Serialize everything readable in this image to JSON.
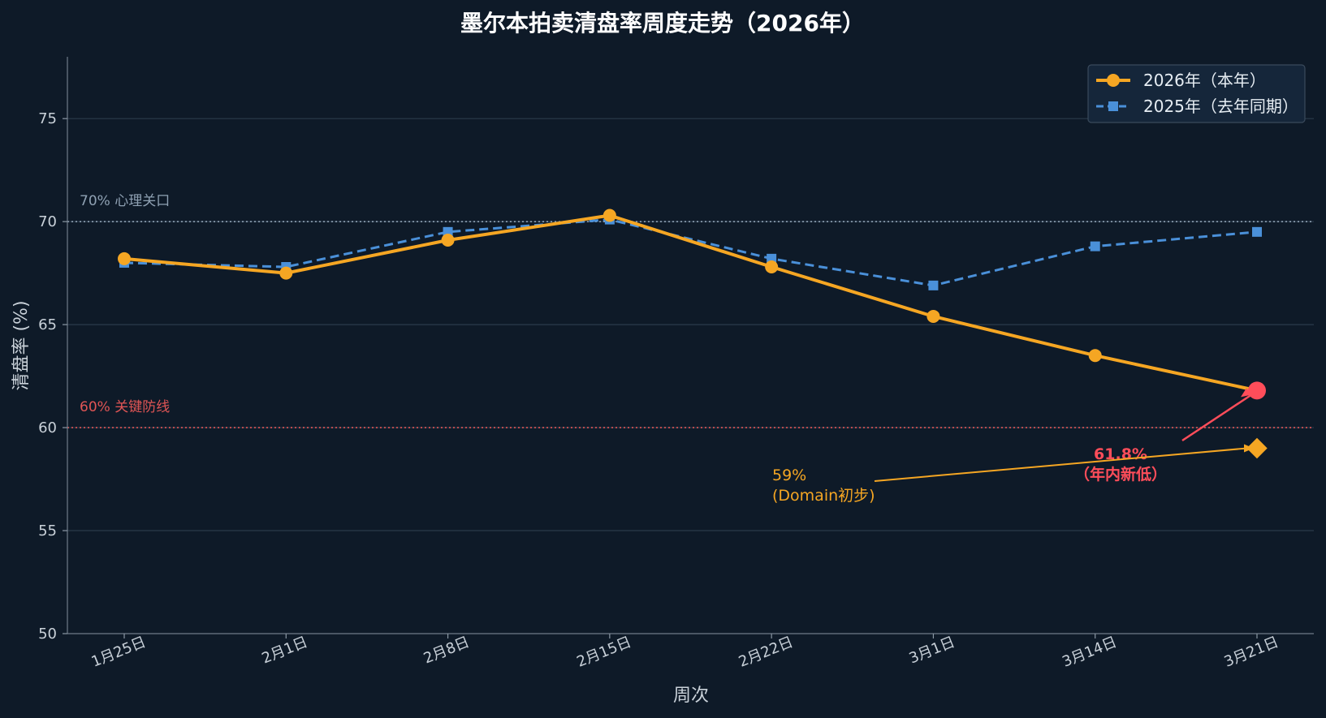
{
  "chart_data": {
    "type": "line",
    "title": "墨尔本拍卖清盘率周度走势（2026年）",
    "xlabel": "周次",
    "ylabel": "清盘率 (%)",
    "categories": [
      "1月25日",
      "2月1日",
      "2月8日",
      "2月15日",
      "2月22日",
      "3月1日",
      "3月14日",
      "3月21日"
    ],
    "ylim": [
      50,
      78
    ],
    "yticks": [
      50,
      55,
      60,
      65,
      70,
      75
    ],
    "grid": true,
    "legend_position": "top-right",
    "series": [
      {
        "name": "2026年（本年）",
        "values": [
          68.2,
          67.5,
          69.1,
          70.3,
          67.8,
          65.4,
          63.5,
          61.8
        ],
        "color": "#f5a623",
        "style": "solid",
        "marker": "circle"
      },
      {
        "name": "2025年（去年同期）",
        "values": [
          68.0,
          67.8,
          69.5,
          70.1,
          68.2,
          66.9,
          68.8,
          69.5
        ],
        "color": "#4a90d9",
        "style": "dashed",
        "marker": "square"
      }
    ],
    "reference_lines": [
      {
        "value": 70,
        "label": "70% 心理关口",
        "color": "#8fa1b3"
      },
      {
        "value": 60,
        "label": "60% 关键防线",
        "color": "#e05555"
      }
    ],
    "annotations": [
      {
        "lines": [
          "61.8%",
          "（年内新低）"
        ],
        "target_category": "3月21日",
        "target_value": 61.8,
        "color": "#ff4d5a",
        "bold": true
      },
      {
        "lines": [
          "59%",
          "(Domain初步)"
        ],
        "target_category": "3月21日",
        "target_value": 59,
        "color": "#f5a623",
        "marker": "diamond",
        "bold": false
      }
    ]
  }
}
